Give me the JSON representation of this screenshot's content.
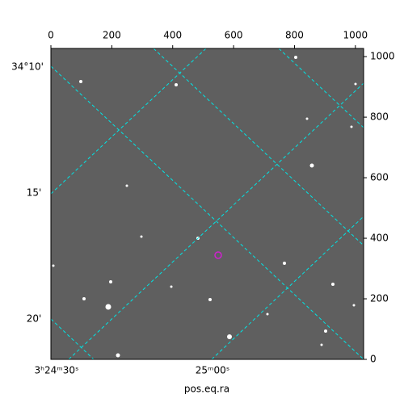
{
  "chart_data": {
    "type": "image",
    "xlabel": "pos.eq.ra",
    "xlim": [
      0,
      1027
    ],
    "xticks": [
      0,
      200,
      400,
      600,
      800,
      1000
    ],
    "ylim": [
      0,
      1027
    ],
    "yticks": [
      0,
      200,
      400,
      600,
      800,
      1000
    ],
    "wcs_dec_labels": [
      "34°10'",
      "15'",
      "20'"
    ],
    "wcs_ra_labels": [
      "3ʰ24ᵐ30ˢ",
      "25ᵐ00ˢ"
    ],
    "grid_color": "#00e5e5"
  }
}
